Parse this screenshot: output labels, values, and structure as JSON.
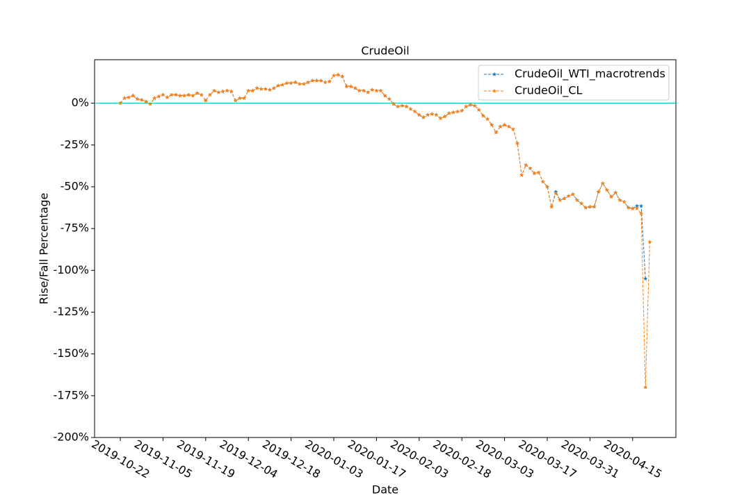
{
  "chart_data": {
    "type": "line",
    "title": "CrudeOil",
    "x_label": "Date",
    "y_label": "Rise/Fall Percentage",
    "categories": [
      "2019-10-22",
      null,
      null,
      null,
      null,
      null,
      null,
      null,
      null,
      null,
      "2019-11-05",
      null,
      null,
      null,
      null,
      null,
      null,
      null,
      null,
      null,
      "2019-11-19",
      null,
      null,
      null,
      null,
      null,
      null,
      null,
      null,
      null,
      "2019-12-04",
      null,
      null,
      null,
      null,
      null,
      null,
      null,
      null,
      null,
      "2019-12-18",
      null,
      null,
      null,
      null,
      null,
      null,
      null,
      null,
      null,
      "2020-01-03",
      null,
      null,
      null,
      null,
      null,
      null,
      null,
      null,
      null,
      "2020-01-17",
      null,
      null,
      null,
      null,
      null,
      null,
      null,
      null,
      null,
      "2020-02-03",
      null,
      null,
      null,
      null,
      null,
      null,
      null,
      null,
      null,
      "2020-02-18",
      null,
      null,
      null,
      null,
      null,
      null,
      null,
      null,
      null,
      "2020-03-03",
      null,
      null,
      null,
      null,
      null,
      null,
      null,
      null,
      null,
      "2020-03-17",
      null,
      null,
      null,
      null,
      null,
      null,
      null,
      null,
      null,
      "2020-03-31",
      null,
      null,
      null,
      null,
      null,
      null,
      null,
      null,
      null,
      "2020-04-15",
      null,
      null,
      null,
      null
    ],
    "series": [
      {
        "name": "CrudeOil_WTI_macrotrends",
        "color": "#1f77b4",
        "values": [
          0,
          3,
          3.5,
          4.5,
          2.5,
          2,
          1,
          -0.5,
          3,
          4,
          5,
          3.5,
          5,
          5,
          4.5,
          4.5,
          5,
          4.5,
          6,
          5,
          1.5,
          5,
          7.5,
          6.5,
          7,
          7.5,
          7,
          1.5,
          3,
          3,
          7.5,
          7.5,
          9,
          8.5,
          8.5,
          8,
          9,
          10.5,
          11,
          12,
          12,
          12.5,
          11.5,
          11.5,
          12.5,
          13.5,
          13.5,
          13.5,
          12.5,
          13,
          16.5,
          17,
          16,
          10,
          10,
          9,
          7.5,
          7.5,
          6.5,
          8,
          7.5,
          7.5,
          4.5,
          2.5,
          -0.5,
          -2,
          -1.5,
          -2,
          -3.5,
          -5,
          -7,
          -8.5,
          -7,
          -6.5,
          -7,
          -9,
          -8,
          -6,
          -5.5,
          -5,
          -4.5,
          -2,
          -1,
          -1.5,
          -4,
          -7.5,
          -9.5,
          -13,
          -17.5,
          -14,
          -13,
          -14,
          -15.5,
          -24,
          -43,
          -37,
          -39,
          -42,
          -41.5,
          -47,
          -50,
          -62,
          -53,
          -58,
          -57,
          -55.5,
          -54.5,
          -58,
          -60,
          -62.5,
          -62,
          -62,
          -53,
          -48,
          -52,
          -56,
          -53.5,
          -58,
          -59,
          -62.5,
          -63,
          -61.5,
          -61.5,
          -105,
          null
        ]
      },
      {
        "name": "CrudeOil_CL",
        "color": "#ff7f0e",
        "values": [
          0,
          3,
          3.5,
          4.5,
          2.5,
          2,
          1,
          -0.5,
          3,
          4,
          5,
          3.5,
          5,
          5,
          4.5,
          4.5,
          5,
          4.5,
          6,
          5,
          1.5,
          5,
          7.5,
          6.5,
          7,
          7.5,
          7,
          1.5,
          3,
          3,
          7.5,
          7.5,
          9,
          8.5,
          8.5,
          8,
          9,
          10.5,
          11,
          12,
          12,
          12.5,
          11.5,
          11.5,
          12.5,
          13.5,
          13.5,
          13.5,
          12.5,
          13,
          16.5,
          17,
          16,
          10,
          10,
          9,
          7.5,
          7.5,
          6.5,
          8,
          7.5,
          7.5,
          4.5,
          2.5,
          -0.5,
          -2,
          -1.5,
          -2,
          -3.5,
          -5,
          -7,
          -8.5,
          -7,
          -6.5,
          -7,
          -9,
          -8,
          -6,
          -5.5,
          -5,
          -4.5,
          -2,
          -1,
          -1.5,
          -4,
          -7.5,
          -9.5,
          -13,
          -17.5,
          -14,
          -13,
          -14,
          -15.5,
          -24,
          -43,
          -37,
          -39,
          -42,
          -41.5,
          -47,
          -50,
          -62,
          -54,
          -58,
          -57,
          -55.5,
          -54.5,
          -58,
          -60,
          -62.5,
          -62,
          -62,
          -53,
          -48,
          -52,
          -56,
          -53.5,
          -58,
          -59,
          -62.5,
          -63,
          -63,
          -66,
          -170,
          -83
        ]
      }
    ],
    "ylim": [
      -200,
      26
    ],
    "yticks": [
      {
        "value": 0,
        "label": "0%"
      },
      {
        "value": -25,
        "label": "-25%"
      },
      {
        "value": -50,
        "label": "-50%"
      },
      {
        "value": -75,
        "label": "-75%"
      },
      {
        "value": -100,
        "label": "-100%"
      },
      {
        "value": -125,
        "label": "-125%"
      },
      {
        "value": -150,
        "label": "-150%"
      },
      {
        "value": -175,
        "label": "-175%"
      },
      {
        "value": -200,
        "label": "-200%"
      }
    ],
    "hline": {
      "value": 0,
      "color": "#17becf"
    },
    "legend": "upper right",
    "line_style": "dashed",
    "marker": "star"
  }
}
